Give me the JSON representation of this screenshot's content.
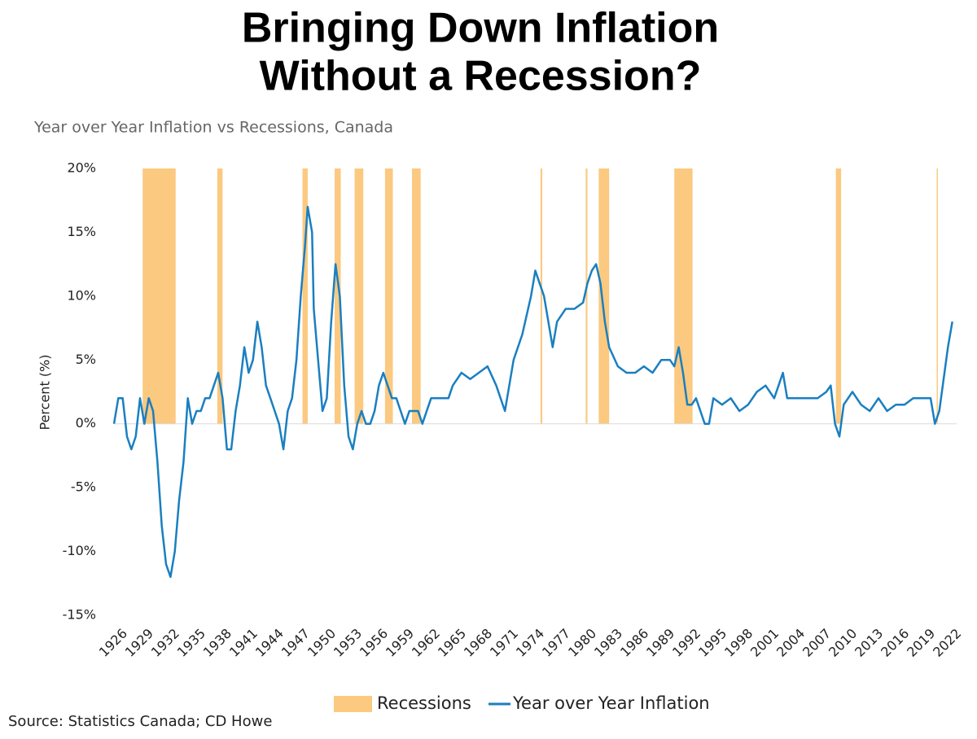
{
  "chart_data": {
    "type": "line",
    "title": [
      "Bringing Down Inflation",
      "Without a Recession?"
    ],
    "subtitle": "Year over Year Inflation vs Recessions, Canada",
    "y_label": "Percent (%)",
    "source": "Source: Statistics Canada; CD Howe",
    "xlim": [
      1926,
      2023
    ],
    "xticks": [
      1926,
      1929,
      1932,
      1935,
      1938,
      1941,
      1944,
      1947,
      1950,
      1953,
      1956,
      1959,
      1962,
      1965,
      1968,
      1971,
      1974,
      1977,
      1980,
      1983,
      1986,
      1989,
      1992,
      1995,
      1998,
      2001,
      2004,
      2007,
      2010,
      2013,
      2016,
      2019,
      2022
    ],
    "ylim": [
      -15,
      20
    ],
    "yticks": [
      {
        "value": -15,
        "label": "-15%"
      },
      {
        "value": -10,
        "label": "-10%"
      },
      {
        "value": -5,
        "label": "-5%"
      },
      {
        "value": 0,
        "label": "0%"
      },
      {
        "value": 5,
        "label": "5%"
      },
      {
        "value": 10,
        "label": "10%"
      },
      {
        "value": 15,
        "label": "15%"
      },
      {
        "value": 20,
        "label": "20%"
      }
    ],
    "bands": {
      "name": "Recessions",
      "color": "#fbc97f",
      "ranges": [
        {
          "start": 1929.3,
          "end": 1933.1
        },
        {
          "start": 1937.9,
          "end": 1938.5
        },
        {
          "start": 1947.7,
          "end": 1948.3
        },
        {
          "start": 1951.4,
          "end": 1952.1
        },
        {
          "start": 1953.7,
          "end": 1954.7
        },
        {
          "start": 1957.2,
          "end": 1958.1
        },
        {
          "start": 1960.3,
          "end": 1961.3
        },
        {
          "start": 1975.1,
          "end": 1975.3
        },
        {
          "start": 1980.3,
          "end": 1980.5
        },
        {
          "start": 1981.8,
          "end": 1983.0
        },
        {
          "start": 1990.5,
          "end": 1992.6
        },
        {
          "start": 2009.1,
          "end": 2009.7
        },
        {
          "start": 2020.7,
          "end": 2020.8
        }
      ]
    },
    "series": [
      {
        "name": "Year over Year Inflation",
        "color": "#1a7fc1",
        "x": [
          1926,
          1926.5,
          1927,
          1927.5,
          1928,
          1928.5,
          1929,
          1929.5,
          1930,
          1930.5,
          1931,
          1931.5,
          1932,
          1932.5,
          1933,
          1933.5,
          1934,
          1934.5,
          1935,
          1935.5,
          1936,
          1936.5,
          1937,
          1937.5,
          1938,
          1938.5,
          1939,
          1939.5,
          1940,
          1940.5,
          1941,
          1941.5,
          1942,
          1942.5,
          1943,
          1943.5,
          1944,
          1944.5,
          1945,
          1945.5,
          1946,
          1946.5,
          1947,
          1947.5,
          1948,
          1948.3,
          1948.8,
          1949,
          1949.5,
          1950,
          1950.5,
          1951,
          1951.5,
          1952,
          1952.5,
          1953,
          1953.5,
          1954,
          1954.5,
          1955,
          1955.5,
          1956,
          1956.5,
          1957,
          1957.5,
          1958,
          1958.5,
          1959,
          1959.5,
          1960,
          1960.5,
          1961,
          1961.5,
          1962,
          1962.5,
          1963,
          1963.5,
          1964,
          1964.5,
          1965,
          1966,
          1967,
          1968,
          1969,
          1970,
          1971,
          1971.5,
          1972,
          1973,
          1974,
          1974.5,
          1975,
          1975.5,
          1976,
          1976.5,
          1977,
          1978,
          1979,
          1980,
          1980.5,
          1981,
          1981.5,
          1982,
          1982.5,
          1983,
          1984,
          1985,
          1986,
          1987,
          1988,
          1989,
          1990,
          1990.5,
          1991,
          1991.5,
          1992,
          1992.5,
          1993,
          1994,
          1994.5,
          1995,
          1996,
          1997,
          1998,
          1999,
          2000,
          2001,
          2002,
          2002.5,
          2003,
          2003.5,
          2004,
          2005,
          2006,
          2007,
          2008,
          2008.5,
          2009,
          2009.5,
          2010,
          2011,
          2012,
          2013,
          2014,
          2015,
          2016,
          2017,
          2018,
          2019,
          2020,
          2020.5,
          2021,
          2021.5,
          2022,
          2022.5
        ],
        "values": [
          0,
          2,
          2,
          -1,
          -2,
          -1,
          2,
          0,
          2,
          1,
          -3,
          -8,
          -11,
          -12,
          -10,
          -6,
          -3,
          2,
          0,
          1,
          1,
          2,
          2,
          3,
          4,
          2,
          -2,
          -2,
          1,
          3,
          6,
          4,
          5,
          8,
          6,
          3,
          2,
          1,
          0,
          -2,
          1,
          2,
          5,
          10,
          14,
          17,
          15,
          9,
          5,
          1,
          2,
          8,
          12.5,
          10,
          3,
          -1,
          -2,
          0,
          1,
          0,
          0,
          1,
          3,
          4,
          3,
          2,
          2,
          1,
          0,
          1,
          1,
          1,
          0,
          1,
          2,
          2,
          2,
          2,
          2,
          3,
          4,
          3.5,
          4,
          4.5,
          3,
          1,
          3,
          5,
          7,
          10,
          12,
          11,
          10,
          8,
          6,
          8,
          9,
          9,
          9.5,
          11,
          12,
          12.5,
          11,
          8,
          6,
          4.5,
          4,
          4,
          4.5,
          4,
          5,
          5,
          4.5,
          6,
          4,
          1.5,
          1.5,
          2,
          0,
          0,
          2,
          1.5,
          2,
          1,
          1.5,
          2.5,
          3,
          2,
          3,
          4,
          2,
          2,
          2,
          2,
          2,
          2.5,
          3,
          0,
          -1,
          1.5,
          2.5,
          1.5,
          1,
          2,
          1,
          1.5,
          1.5,
          2,
          2,
          2,
          0,
          1,
          3.5,
          6,
          8
        ]
      }
    ]
  }
}
